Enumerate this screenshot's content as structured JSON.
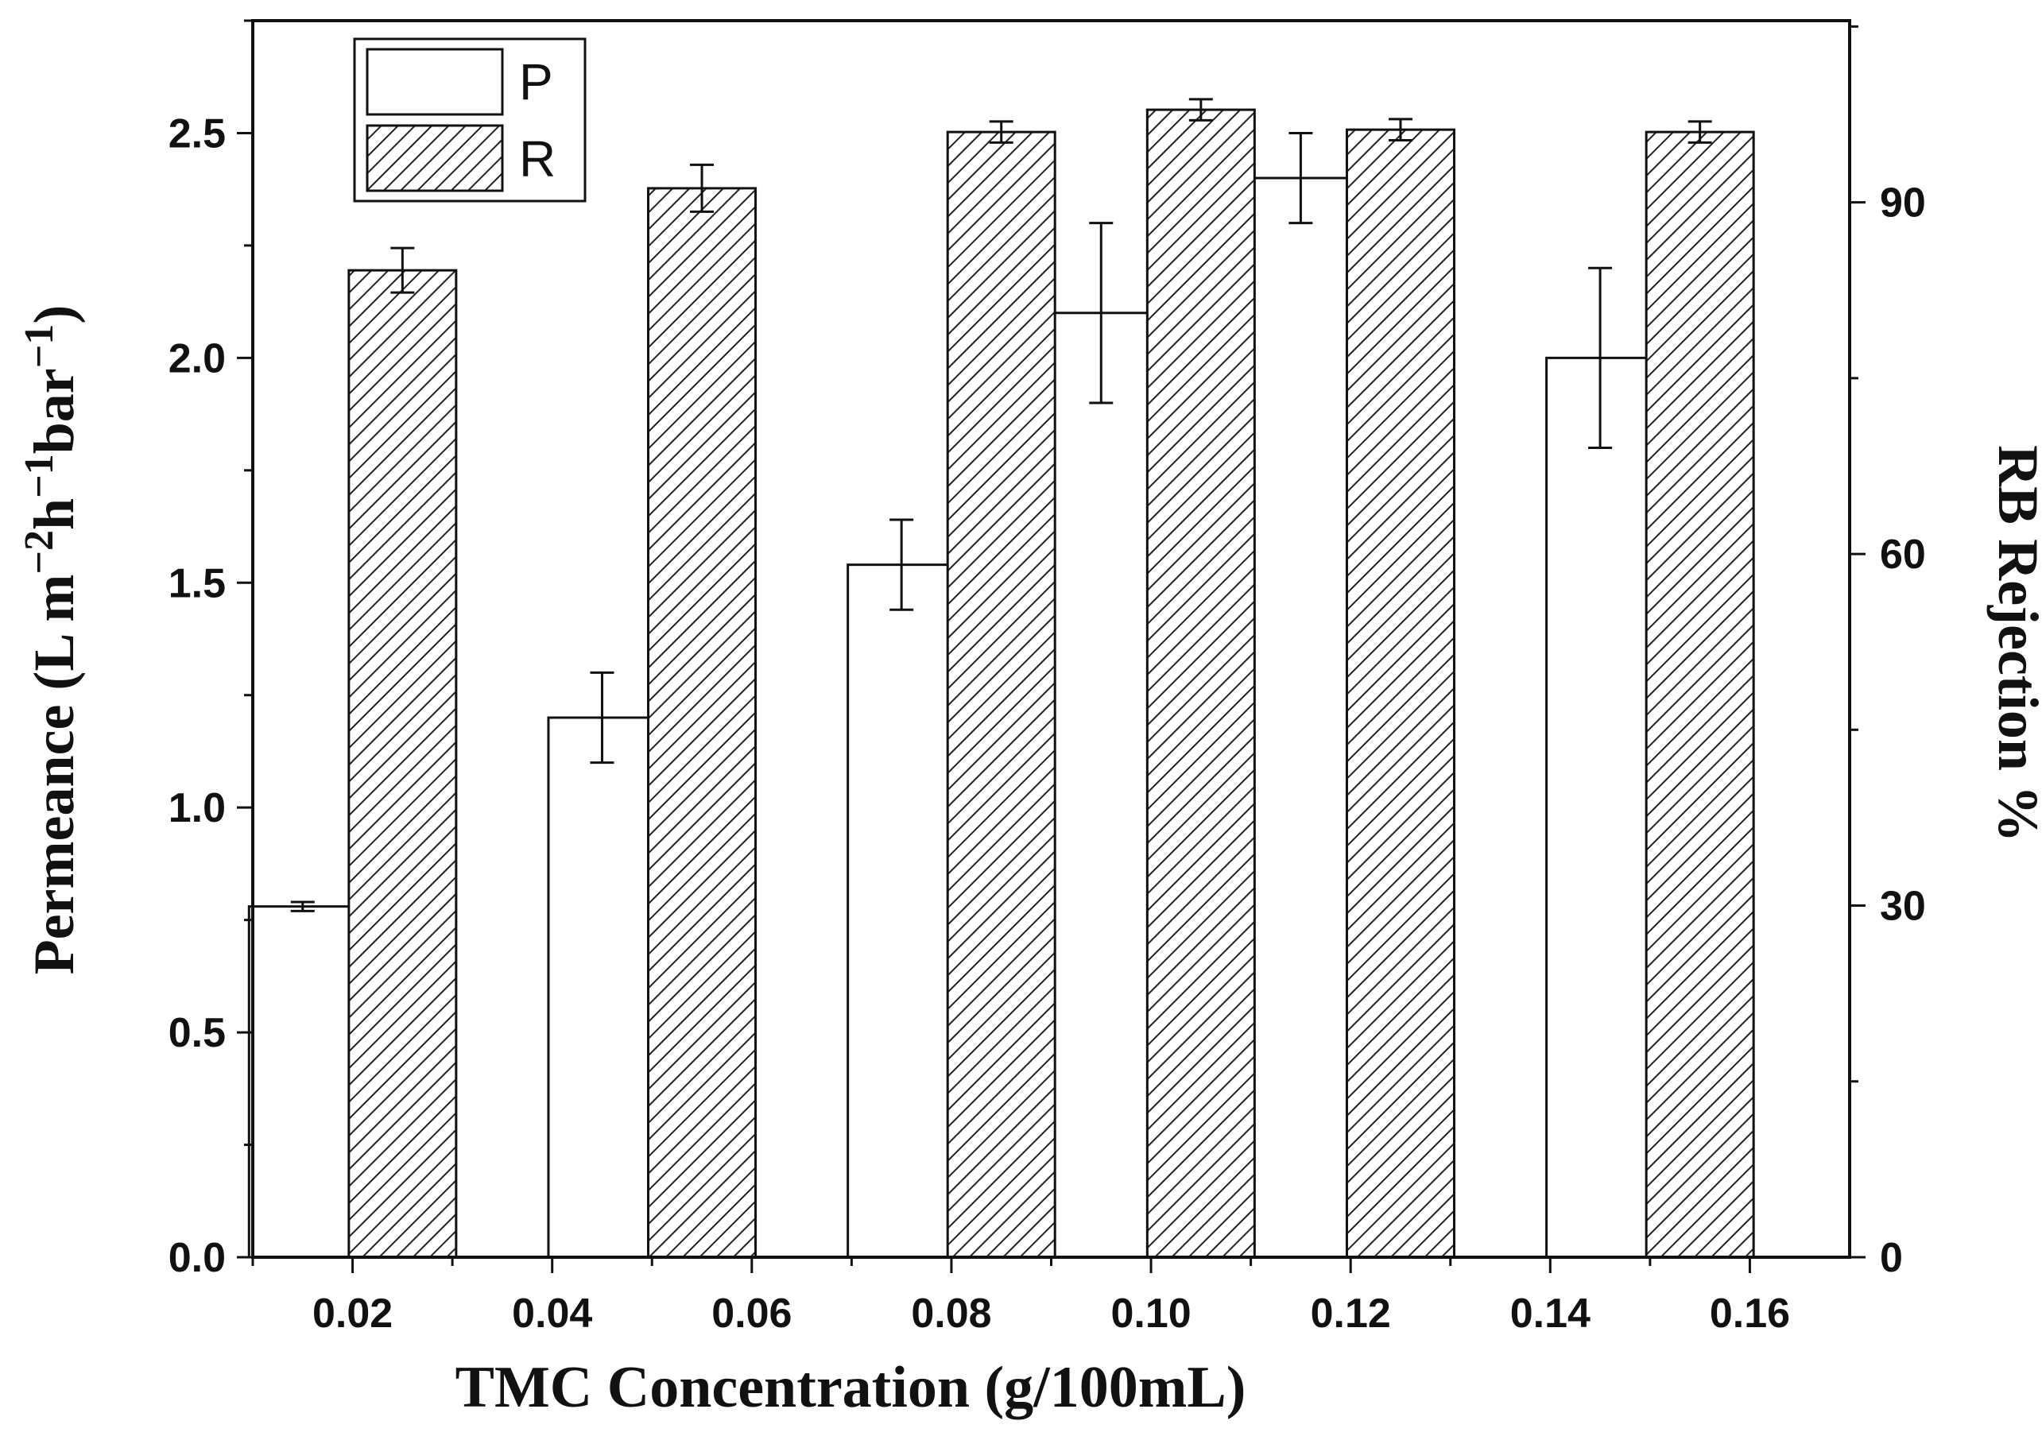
{
  "chart_data": {
    "type": "bar",
    "x_tick_labels": [
      "0.02",
      "0.04",
      "0.06",
      "0.08",
      "0.10",
      "0.12",
      "0.14",
      "0.16"
    ],
    "xlabel": "TMC Concentration (g/100mL)",
    "xlim": [
      0.01,
      0.17
    ],
    "ylabel": {
      "main": "Permeance (L m",
      "sup1": "−2",
      "mid1": "h",
      "sup2": "−1",
      "mid2": "bar",
      "sup3": "−1",
      "end": ")"
    },
    "ylim": [
      0.0,
      2.75
    ],
    "y_ticks": [
      "0.0",
      "0.5",
      "1.0",
      "1.5",
      "2.0",
      "2.5"
    ],
    "y2label": "RB Rejection %",
    "y2lim": [
      0,
      105.5
    ],
    "y2_ticks": [
      "0",
      "30",
      "60",
      "90"
    ],
    "series": [
      {
        "name": "P",
        "axis": "left",
        "pattern": "open",
        "x": [
          0.015,
          0.045,
          0.075,
          0.095,
          0.115,
          0.145
        ],
        "values": [
          0.78,
          1.2,
          1.54,
          2.1,
          2.4,
          2.0
        ],
        "errors": [
          0.01,
          0.1,
          0.1,
          0.2,
          0.1,
          0.2
        ]
      },
      {
        "name": "R",
        "axis": "right",
        "pattern": "hatched",
        "x": [
          0.025,
          0.055,
          0.085,
          0.105,
          0.125,
          0.155
        ],
        "values": [
          84.2,
          91.2,
          96.0,
          97.9,
          96.2,
          96.0
        ],
        "errors": [
          1.9,
          2.0,
          0.9,
          0.9,
          0.9,
          0.9
        ]
      }
    ],
    "legend": {
      "position": "top-left",
      "entries": [
        "P",
        "R"
      ]
    }
  }
}
